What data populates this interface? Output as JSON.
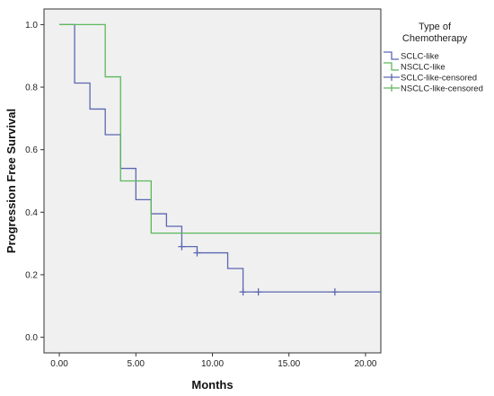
{
  "chart_data": {
    "type": "line",
    "subtype": "kaplan-meier-step",
    "xlabel": "Months",
    "ylabel": "Progression Free Survival",
    "xlim": [
      -1,
      21
    ],
    "ylim": [
      -0.05,
      1.05
    ],
    "xticks": [
      0,
      5,
      10,
      15,
      20
    ],
    "xtick_labels": [
      "0.00",
      "5.00",
      "10.00",
      "15.00",
      "20.00"
    ],
    "yticks": [
      0,
      0.2,
      0.4,
      0.6,
      0.8,
      1.0
    ],
    "ytick_labels": [
      "0.0",
      "0.2",
      "0.4",
      "0.6",
      "0.8",
      "1.0"
    ],
    "grid": false,
    "legend": {
      "title_lines": [
        "Type of",
        "Chemotherapy"
      ],
      "placement": "right",
      "entries": [
        {
          "label": "SCLC-like",
          "kind": "line",
          "color": "#5b67b1"
        },
        {
          "label": "NSCLC-like",
          "kind": "line",
          "color": "#5cb85c"
        },
        {
          "label": "SCLC-like-censored",
          "kind": "censor",
          "color": "#5b67b1"
        },
        {
          "label": "NSCLC-like-censored",
          "kind": "censor",
          "color": "#5cb85c"
        }
      ]
    },
    "series": [
      {
        "name": "SCLC-like",
        "color": "#5b67b1",
        "steps": [
          [
            0,
            1.0
          ],
          [
            1,
            0.813
          ],
          [
            2,
            0.73
          ],
          [
            3,
            0.648
          ],
          [
            4,
            0.54
          ],
          [
            5,
            0.44
          ],
          [
            6,
            0.395
          ],
          [
            7,
            0.355
          ],
          [
            8,
            0.29
          ],
          [
            9,
            0.27
          ],
          [
            11,
            0.22
          ],
          [
            12,
            0.145
          ],
          [
            21,
            0.145
          ]
        ],
        "censored": [
          [
            8,
            0.29
          ],
          [
            9,
            0.27
          ],
          [
            12,
            0.145
          ],
          [
            13,
            0.145
          ],
          [
            18,
            0.145
          ]
        ]
      },
      {
        "name": "NSCLC-like",
        "color": "#5cb85c",
        "steps": [
          [
            0,
            1.0
          ],
          [
            3,
            0.833
          ],
          [
            4,
            0.5
          ],
          [
            6,
            0.333
          ],
          [
            21,
            0.333
          ]
        ],
        "censored": []
      }
    ]
  }
}
